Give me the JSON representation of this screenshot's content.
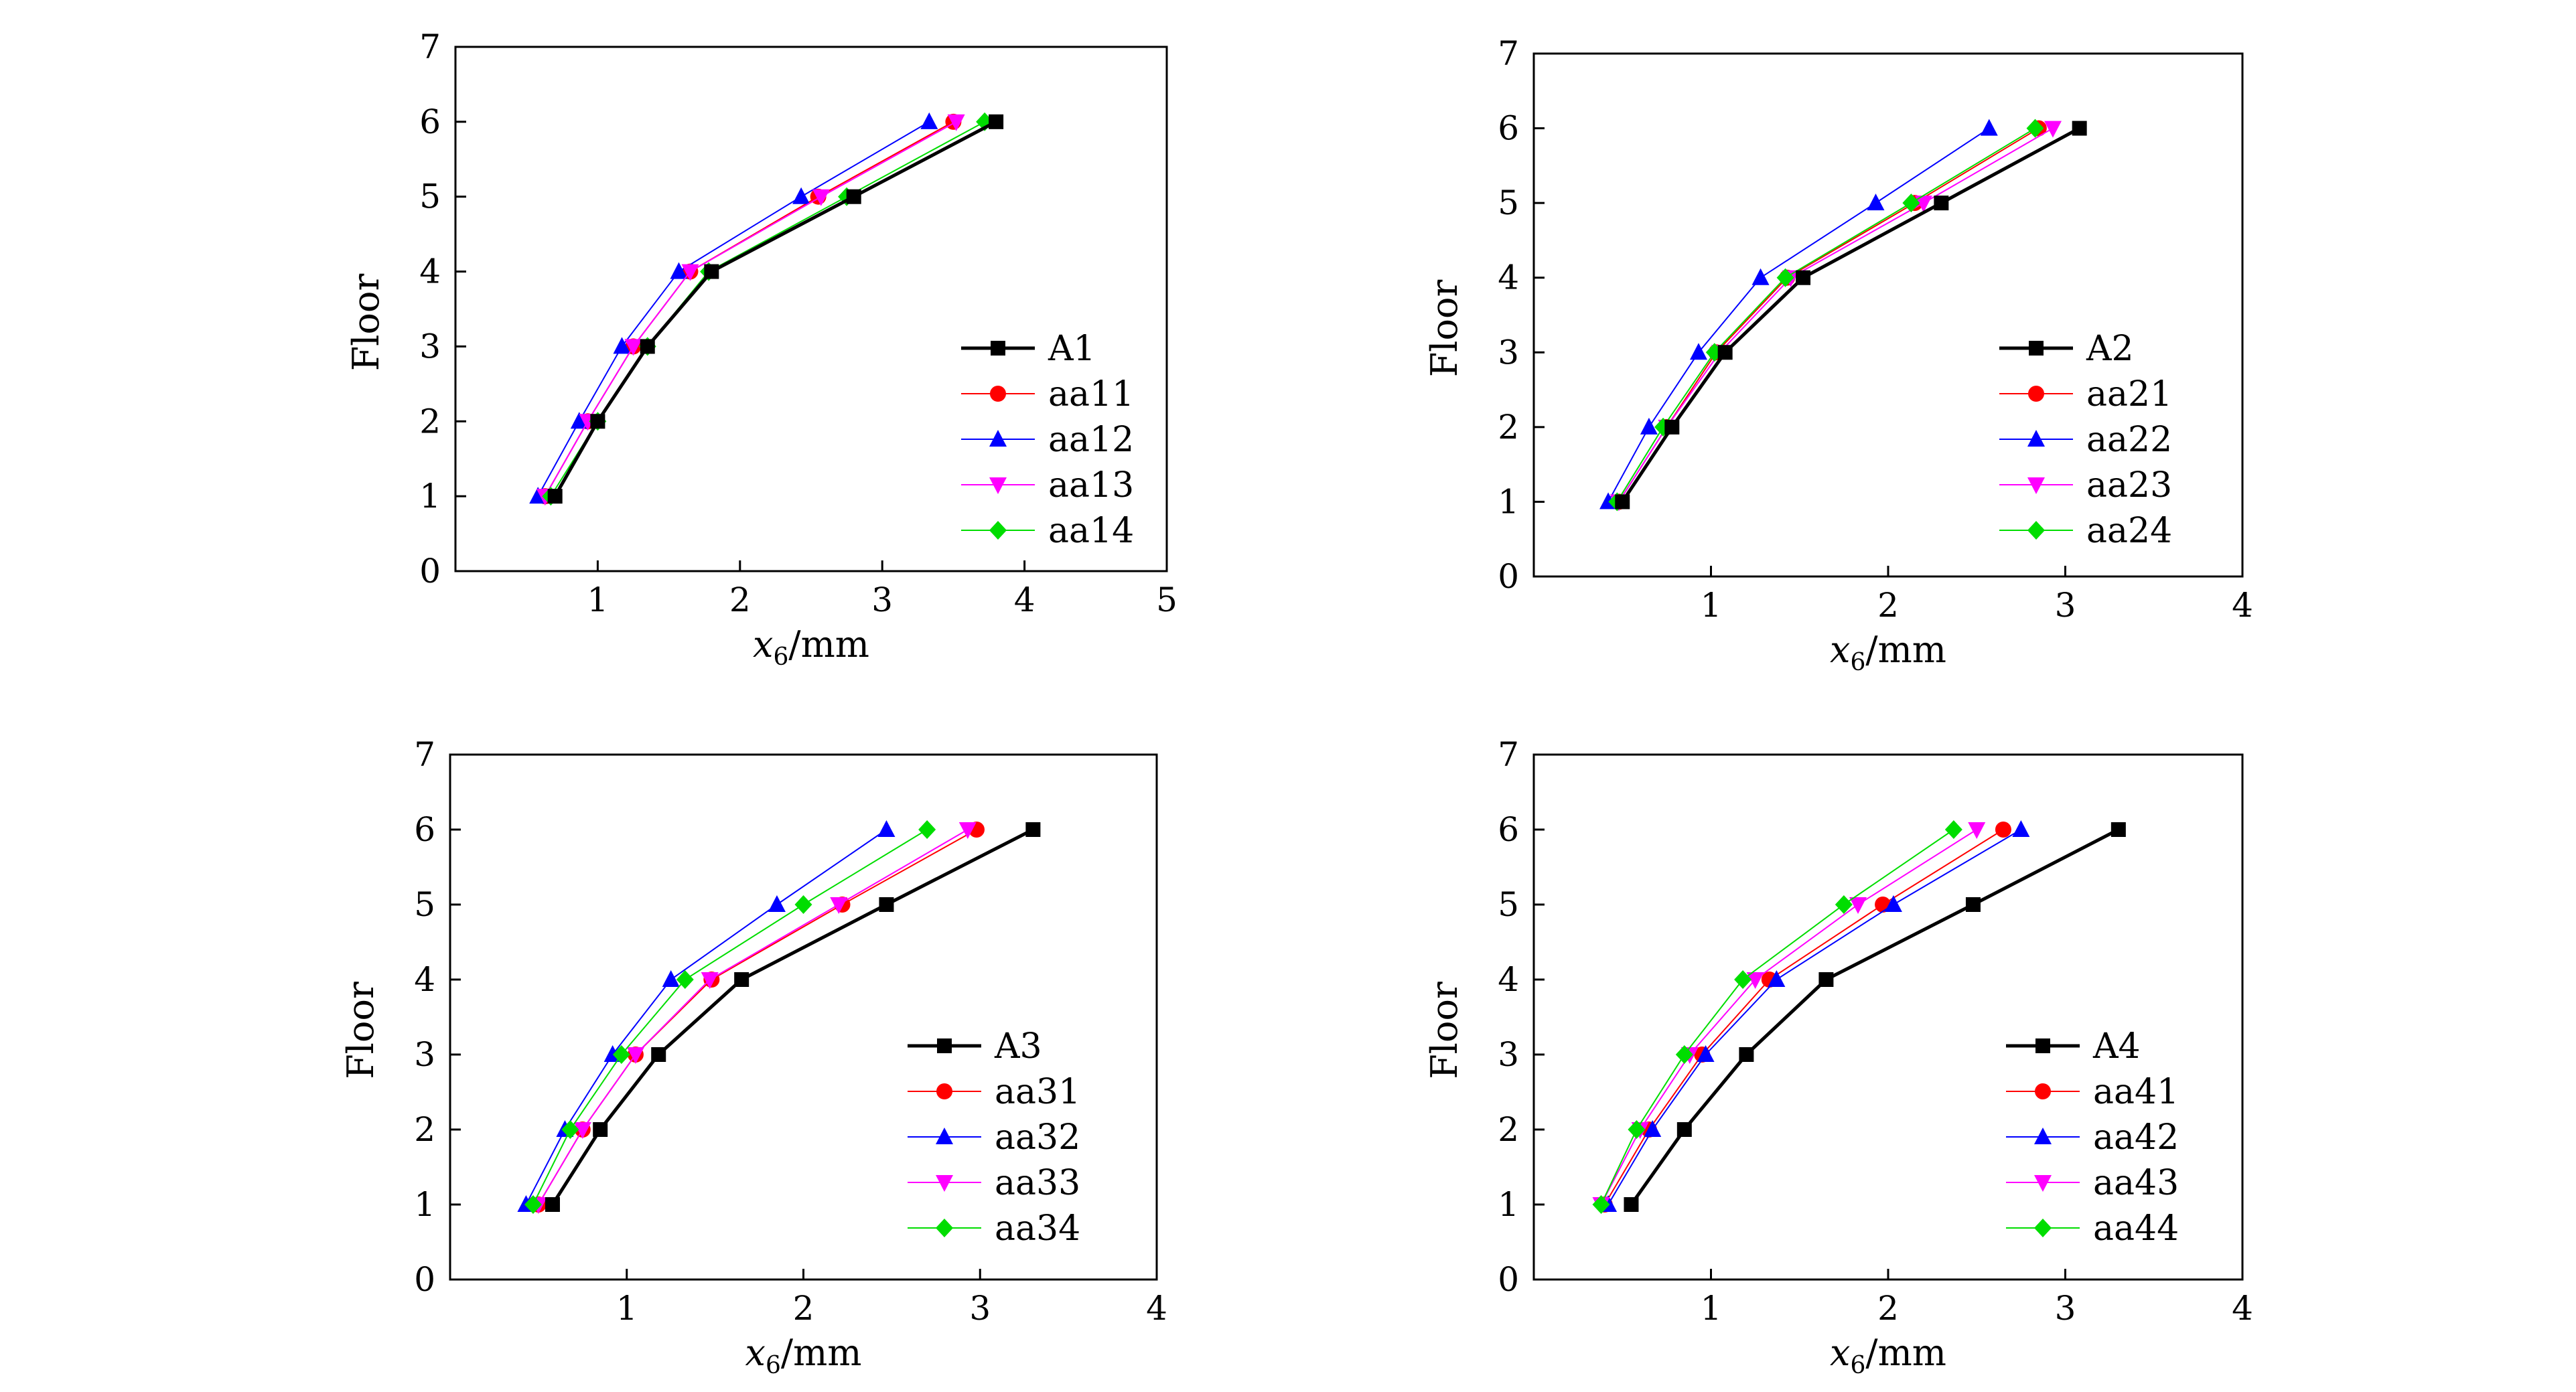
{
  "chart_data": [
    {
      "type": "line",
      "xlabel_main": "x",
      "xlabel_sub": "6",
      "xlabel_unit": "/mm",
      "ylabel": "Floor",
      "xlim": [
        0,
        5
      ],
      "ylim": [
        0,
        7
      ],
      "xticks": [
        1,
        2,
        3,
        4,
        5
      ],
      "yticks": [
        0,
        1,
        2,
        3,
        4,
        5,
        6,
        7
      ],
      "legend_position": "bottom-right",
      "series": [
        {
          "name": "A1",
          "color": "#000000",
          "marker": "square",
          "floors": [
            1,
            2,
            3,
            4,
            5,
            6
          ],
          "x": [
            0.7,
            1.0,
            1.35,
            1.8,
            2.8,
            3.8
          ]
        },
        {
          "name": "aa11",
          "color": "#ff0000",
          "marker": "circle",
          "floors": [
            1,
            2,
            3,
            4,
            5,
            6
          ],
          "x": [
            0.63,
            0.93,
            1.25,
            1.65,
            2.55,
            3.5
          ]
        },
        {
          "name": "aa12",
          "color": "#0000ff",
          "marker": "triangle-up",
          "floors": [
            1,
            2,
            3,
            4,
            5,
            6
          ],
          "x": [
            0.58,
            0.87,
            1.17,
            1.57,
            2.43,
            3.33
          ]
        },
        {
          "name": "aa13",
          "color": "#ff00ff",
          "marker": "triangle-down",
          "floors": [
            1,
            2,
            3,
            4,
            5,
            6
          ],
          "x": [
            0.63,
            0.93,
            1.25,
            1.65,
            2.57,
            3.52
          ]
        },
        {
          "name": "aa14",
          "color": "#00dd00",
          "marker": "diamond",
          "floors": [
            1,
            2,
            3,
            4,
            5,
            6
          ],
          "x": [
            0.67,
            1.0,
            1.35,
            1.78,
            2.75,
            3.72
          ]
        }
      ]
    },
    {
      "type": "line",
      "xlabel_main": "x",
      "xlabel_sub": "6",
      "xlabel_unit": "/mm",
      "ylabel": "Floor",
      "xlim": [
        0,
        4
      ],
      "ylim": [
        0,
        7
      ],
      "xticks": [
        1,
        2,
        3,
        4
      ],
      "yticks": [
        0,
        1,
        2,
        3,
        4,
        5,
        6,
        7
      ],
      "legend_position": "bottom-right",
      "series": [
        {
          "name": "A2",
          "color": "#000000",
          "marker": "square",
          "floors": [
            1,
            2,
            3,
            4,
            5,
            6
          ],
          "x": [
            0.5,
            0.78,
            1.08,
            1.52,
            2.3,
            3.08
          ]
        },
        {
          "name": "aa21",
          "color": "#ff0000",
          "marker": "circle",
          "floors": [
            1,
            2,
            3,
            4,
            5,
            6
          ],
          "x": [
            0.48,
            0.75,
            1.03,
            1.43,
            2.15,
            2.85
          ]
        },
        {
          "name": "aa22",
          "color": "#0000ff",
          "marker": "triangle-up",
          "floors": [
            1,
            2,
            3,
            4,
            5,
            6
          ],
          "x": [
            0.42,
            0.65,
            0.93,
            1.28,
            1.93,
            2.57
          ]
        },
        {
          "name": "aa23",
          "color": "#ff00ff",
          "marker": "triangle-down",
          "floors": [
            1,
            2,
            3,
            4,
            5,
            6
          ],
          "x": [
            0.48,
            0.75,
            1.05,
            1.45,
            2.2,
            2.93
          ]
        },
        {
          "name": "aa24",
          "color": "#00dd00",
          "marker": "diamond",
          "floors": [
            1,
            2,
            3,
            4,
            5,
            6
          ],
          "x": [
            0.47,
            0.73,
            1.02,
            1.42,
            2.13,
            2.83
          ]
        }
      ]
    },
    {
      "type": "line",
      "xlabel_main": "x",
      "xlabel_sub": "6",
      "xlabel_unit": "/mm",
      "ylabel": "Floor",
      "xlim": [
        0,
        4
      ],
      "ylim": [
        0,
        7
      ],
      "xticks": [
        1,
        2,
        3,
        4
      ],
      "yticks": [
        0,
        1,
        2,
        3,
        4,
        5,
        6,
        7
      ],
      "legend_position": "bottom-right",
      "series": [
        {
          "name": "A3",
          "color": "#000000",
          "marker": "square",
          "floors": [
            1,
            2,
            3,
            4,
            5,
            6
          ],
          "x": [
            0.58,
            0.85,
            1.18,
            1.65,
            2.47,
            3.3
          ]
        },
        {
          "name": "aa31",
          "color": "#ff0000",
          "marker": "circle",
          "floors": [
            1,
            2,
            3,
            4,
            5,
            6
          ],
          "x": [
            0.5,
            0.75,
            1.05,
            1.48,
            2.22,
            2.98
          ]
        },
        {
          "name": "aa32",
          "color": "#0000ff",
          "marker": "triangle-up",
          "floors": [
            1,
            2,
            3,
            4,
            5,
            6
          ],
          "x": [
            0.43,
            0.65,
            0.92,
            1.25,
            1.85,
            2.47
          ]
        },
        {
          "name": "aa33",
          "color": "#ff00ff",
          "marker": "triangle-down",
          "floors": [
            1,
            2,
            3,
            4,
            5,
            6
          ],
          "x": [
            0.5,
            0.75,
            1.05,
            1.47,
            2.2,
            2.93
          ]
        },
        {
          "name": "aa34",
          "color": "#00dd00",
          "marker": "diamond",
          "floors": [
            1,
            2,
            3,
            4,
            5,
            6
          ],
          "x": [
            0.47,
            0.68,
            0.97,
            1.33,
            2.0,
            2.7
          ]
        }
      ]
    },
    {
      "type": "line",
      "xlabel_main": "x",
      "xlabel_sub": "6",
      "xlabel_unit": "/mm",
      "ylabel": "Floor",
      "xlim": [
        0,
        4
      ],
      "ylim": [
        0,
        7
      ],
      "xticks": [
        1,
        2,
        3,
        4
      ],
      "yticks": [
        0,
        1,
        2,
        3,
        4,
        5,
        6,
        7
      ],
      "legend_position": "bottom-right",
      "series": [
        {
          "name": "A4",
          "color": "#000000",
          "marker": "square",
          "floors": [
            1,
            2,
            3,
            4,
            5,
            6
          ],
          "x": [
            0.55,
            0.85,
            1.2,
            1.65,
            2.48,
            3.3
          ]
        },
        {
          "name": "aa41",
          "color": "#ff0000",
          "marker": "circle",
          "floors": [
            1,
            2,
            3,
            4,
            5,
            6
          ],
          "x": [
            0.4,
            0.65,
            0.95,
            1.33,
            1.97,
            2.65
          ]
        },
        {
          "name": "aa42",
          "color": "#0000ff",
          "marker": "triangle-up",
          "floors": [
            1,
            2,
            3,
            4,
            5,
            6
          ],
          "x": [
            0.42,
            0.67,
            0.97,
            1.37,
            2.03,
            2.75
          ]
        },
        {
          "name": "aa43",
          "color": "#ff00ff",
          "marker": "triangle-down",
          "floors": [
            1,
            2,
            3,
            4,
            5,
            6
          ],
          "x": [
            0.38,
            0.6,
            0.88,
            1.25,
            1.83,
            2.5
          ]
        },
        {
          "name": "aa44",
          "color": "#00dd00",
          "marker": "diamond",
          "floors": [
            1,
            2,
            3,
            4,
            5,
            6
          ],
          "x": [
            0.38,
            0.58,
            0.85,
            1.18,
            1.75,
            2.37
          ]
        }
      ]
    }
  ]
}
